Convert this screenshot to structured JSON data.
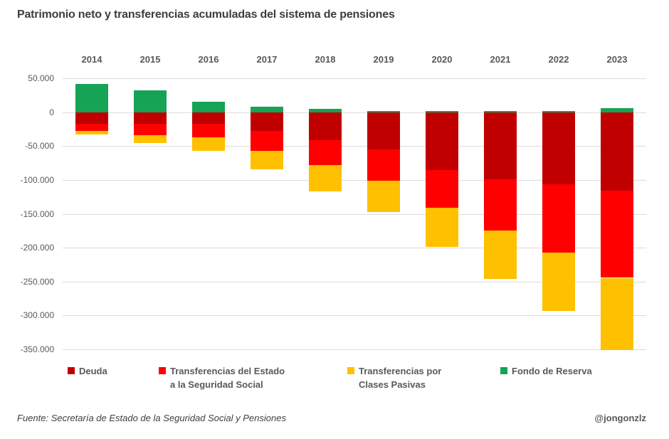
{
  "title": "Patrimonio neto y transferencias acumuladas del sistema de pensiones",
  "footer": {
    "source": "Fuente: Secretaría de Estado de la Seguridad Social y Pensiones",
    "handle": "@jongonzlz"
  },
  "colors": {
    "deuda": "#C00000",
    "transferencias_estado": "#FF0000",
    "clases_pasivas": "#FFC000",
    "fondo_reserva": "#15A356",
    "gridline": "#DCDCDC",
    "text": "#595959",
    "title_text": "#3D3D3D"
  },
  "chart_data": {
    "type": "bar",
    "stacked": true,
    "title": "Patrimonio neto y transferencias acumuladas del sistema de pensiones",
    "xlabel": "",
    "ylabel": "",
    "grid": true,
    "legend_position": "bottom",
    "categories": [
      "2014",
      "2015",
      "2016",
      "2017",
      "2018",
      "2019",
      "2020",
      "2021",
      "2022",
      "2023"
    ],
    "series": [
      {
        "key": "deuda",
        "name": "Deuda",
        "color": "#C00000",
        "values": [
          -17200,
          -17200,
          -17200,
          -27400,
          -41200,
          -55000,
          -85400,
          -99200,
          -106200,
          -116200
        ]
      },
      {
        "key": "transferencias_estado",
        "name": "Transferencias del Estado a la Seguridad Social",
        "color": "#FF0000",
        "values": [
          -10800,
          -16700,
          -20000,
          -29300,
          -37300,
          -46200,
          -55400,
          -75500,
          -101100,
          -128300
        ]
      },
      {
        "key": "clases_pasivas",
        "name": "Transferencias por Clases Pasivas",
        "color": "#FFC000",
        "values": [
          -5000,
          -12000,
          -20400,
          -28100,
          -38500,
          -46600,
          -57700,
          -71800,
          -86500,
          -106000
        ]
      },
      {
        "key": "fondo_reserva",
        "name": "Fondo de Reserva",
        "color": "#15A356",
        "values": [
          41600,
          32500,
          15000,
          8100,
          5000,
          2200,
          2100,
          2100,
          2100,
          5600
        ]
      }
    ],
    "y_axis": {
      "min": -350000,
      "max": 50000,
      "tick_values": [
        50000,
        0,
        -50000,
        -100000,
        -150000,
        -200000,
        -250000,
        -300000,
        -350000
      ],
      "tick_labels": [
        "50.000",
        "0",
        "-50.000",
        "-100.000",
        "-150.000",
        "-200.000",
        "-250.000",
        "-300.000",
        "-350.000"
      ]
    },
    "legend": {
      "items": [
        {
          "key": "deuda",
          "color": "#C00000",
          "label_lines": [
            "Deuda"
          ]
        },
        {
          "key": "transferencias_estado",
          "color": "#FF0000",
          "label_lines": [
            "Transferencias del Estado",
            "a la Seguridad Social"
          ]
        },
        {
          "key": "clases_pasivas",
          "color": "#FFC000",
          "label_lines": [
            "Transferencias por",
            "Clases Pasivas"
          ]
        },
        {
          "key": "fondo_reserva",
          "color": "#15A356",
          "label_lines": [
            "Fondo de Reserva"
          ]
        }
      ]
    }
  }
}
